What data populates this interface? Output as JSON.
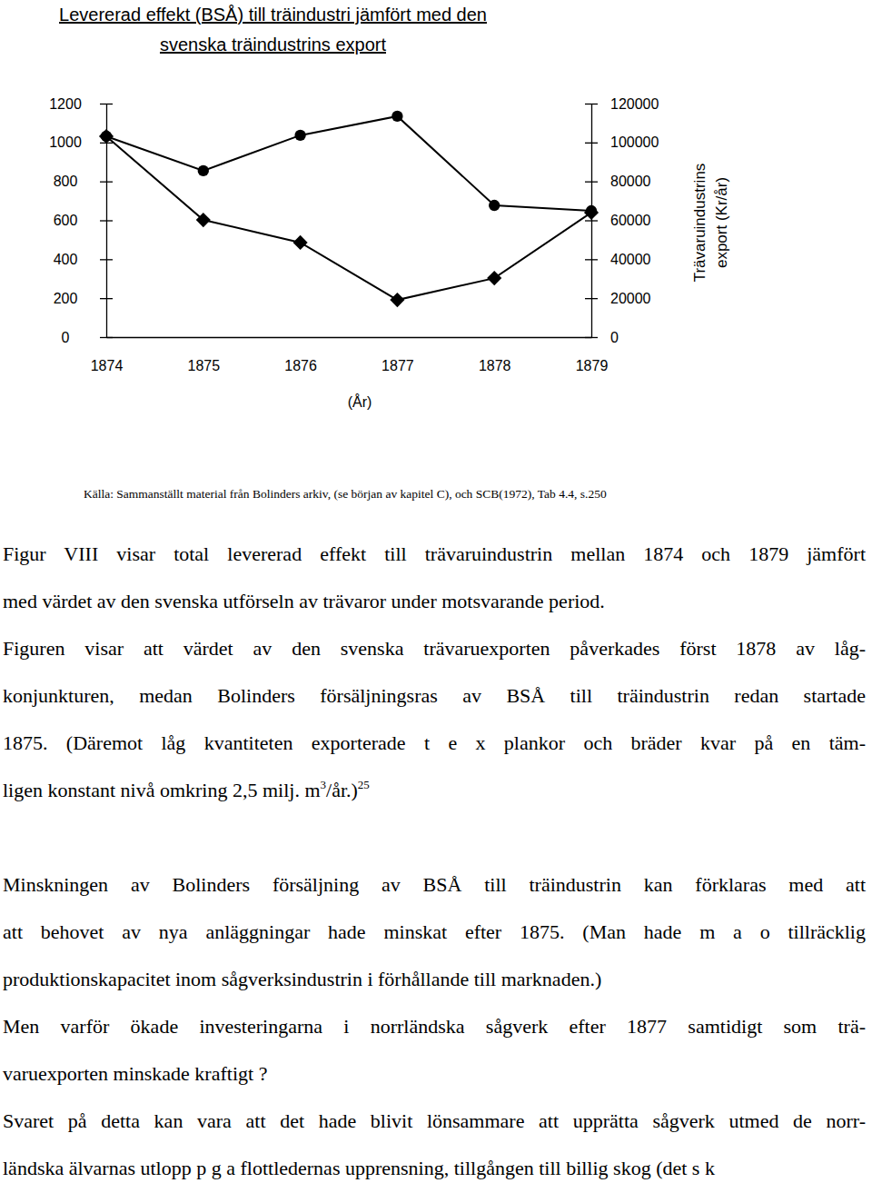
{
  "chart_data": {
    "type": "line",
    "title": "Levererad effekt (BSÅ) till träindustri jämfört med den svenska träindustrins export",
    "x_label": "(År)",
    "y2_label": "Trävaruindustrins export (Kr/år)",
    "x": [
      1874,
      1875,
      1876,
      1877,
      1878,
      1879
    ],
    "xlim": [
      1874,
      1879
    ],
    "xticks": [
      1874,
      1875,
      1876,
      1877,
      1878,
      1879
    ],
    "ylim": [
      0,
      1200
    ],
    "yticks": [
      0,
      200,
      400,
      600,
      800,
      1000,
      1200
    ],
    "y2lim": [
      0,
      120000
    ],
    "y2ticks": [
      0,
      20000,
      40000,
      60000,
      80000,
      100000,
      120000
    ],
    "series": [
      {
        "values": [
          1032,
          602,
          486,
          191,
          303,
          640
        ],
        "color": "#000000",
        "marker": "diamond"
      },
      {
        "values": [
          103200,
          85500,
          103700,
          113500,
          67700,
          64900
        ],
        "color": "#000000",
        "marker": "circle",
        "axis": "y2"
      }
    ]
  },
  "document": {
    "source": "Källa: Sammanställt material från Bolinders arkiv, (se början av kapitel C), och SCB(1972), Tab 4.4, s.250",
    "blocks": [
      {
        "paragraphs": [
          [
            "Figur VIII visar total levererad effekt till trävaruindustrin mellan 1874 och 1879 jämfört",
            "med värdet av den svenska utförseln av trävaror under motsvarande period."
          ],
          [
            "Figuren visar att värdet av den svenska trävaruexporten påverkades först 1878 av låg-",
            "konjunkturen, medan Bolinders försäljningsras av BSÅ till träindustrin redan startade",
            "1875. (Däremot låg kvantiteten exporterade t e x plankor och bräder kvar på en täm-",
            [
              {
                "text": "ligen konstant nivå omkring 2,5 milj. m"
              },
              {
                "text": "3",
                "sup": true
              },
              {
                "text": "/år.)"
              },
              {
                "text": "25",
                "sup": true
              }
            ]
          ]
        ]
      },
      {
        "paragraphs": [
          [
            "Minskningen av Bolinders försäljning av BSÅ till träindustrin kan förklaras med att",
            "att behovet av nya anläggningar hade minskat efter 1875. (Man hade m a o tillräcklig",
            "produktionskapacitet inom sågverksindustrin i förhållande till marknaden.)"
          ],
          [
            "Men varför ökade investeringarna i norrländska sågverk efter 1877 samtidigt som trä-",
            "varuexporten minskade kraftigt ?"
          ],
          [
            "Svaret på detta kan vara att det hade blivit lönsammare att upprätta sågverk utmed de norr-",
            "ländska älvarnas utlopp p g a flottledernas upprensning, tillgången till billig skog (det s k"
          ]
        ]
      }
    ]
  }
}
